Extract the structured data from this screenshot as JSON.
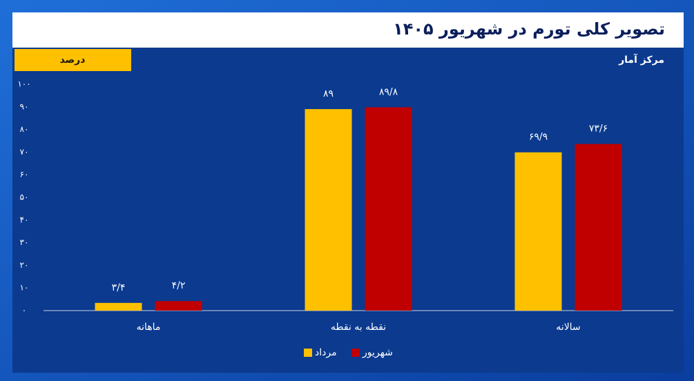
{
  "chart_data": {
    "type": "bar",
    "title": "تصویر کلی تورم در شهریور ۱۴۰۵",
    "subtitle": "مرکز آمار",
    "unit": "درصد",
    "categories": [
      "ماهانه",
      "نقطه به نقطه",
      "سالانه"
    ],
    "series": [
      {
        "name": "مرداد",
        "color": "#ffc000",
        "values": [
          3.4,
          89,
          69.9
        ],
        "value_labels": [
          "۳/۴",
          "۸۹",
          "۶۹/۹"
        ]
      },
      {
        "name": "شهریور",
        "color": "#c00000",
        "values": [
          4.2,
          89.8,
          73.6
        ],
        "value_labels": [
          "۴/۲",
          "۸۹/۸",
          "۷۳/۶"
        ]
      }
    ],
    "ylim": [
      0,
      100
    ],
    "yticks": [
      {
        "value": 0,
        "label": "۰"
      },
      {
        "value": 10,
        "label": "۱۰"
      },
      {
        "value": 20,
        "label": "۲۰"
      },
      {
        "value": 30,
        "label": "۳۰"
      },
      {
        "value": 40,
        "label": "۴۰"
      },
      {
        "value": 50,
        "label": "۵۰"
      },
      {
        "value": 60,
        "label": "۶۰"
      },
      {
        "value": 70,
        "label": "۷۰"
      },
      {
        "value": 80,
        "label": "۸۰"
      },
      {
        "value": 90,
        "label": "۹۰"
      },
      {
        "value": 100,
        "label": "۱۰۰"
      }
    ],
    "grid": false
  }
}
